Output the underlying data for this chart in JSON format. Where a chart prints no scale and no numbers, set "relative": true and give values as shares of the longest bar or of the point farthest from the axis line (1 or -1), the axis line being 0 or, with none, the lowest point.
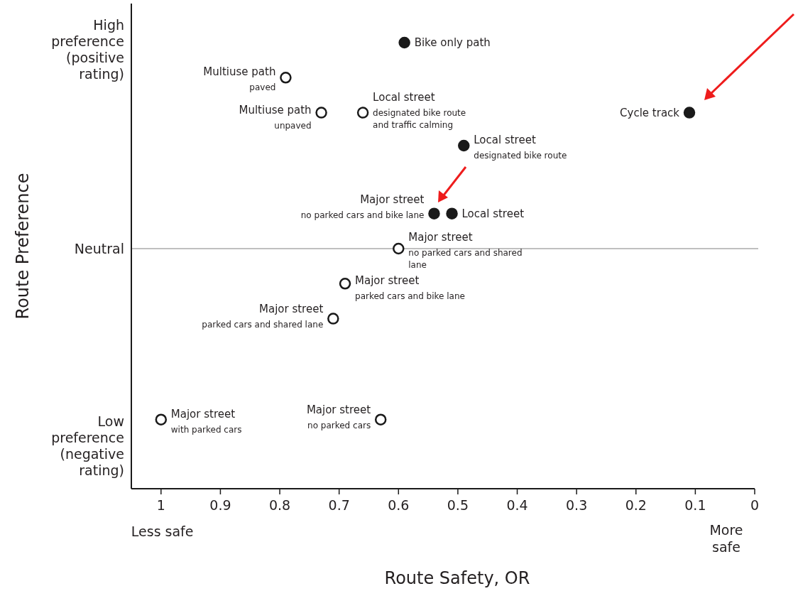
{
  "chart_data": {
    "type": "scatter",
    "xlabel": "Route Safety, OR",
    "relative": true,
    "xlim": [
      1.05,
      0
    ],
    "xticks": [
      1,
      0.9,
      0.8,
      0.7,
      0.6,
      0.5,
      0.4,
      0.3,
      0.2,
      0.1,
      0
    ],
    "grid": false,
    "marker": "circle",
    "ref_lines": [
      {
        "axis": "y",
        "value": 0,
        "label": "Neutral",
        "color": "#808080"
      }
    ],
    "series": [
      {
        "color": "#1a1a1a",
        "x": [
          0.59,
          0.11,
          0.49,
          0.54,
          0.51
        ],
        "values": [
          1,
          0.66,
          0.5,
          0.17,
          0.17
        ]
      },
      {
        "color": "#ffffff",
        "x": [
          0.79,
          0.73,
          0.66,
          0.6,
          0.69,
          0.71,
          1.0,
          0.63
        ],
        "values": [
          0.83,
          0.66,
          0.66,
          0.0,
          -0.17,
          -0.34,
          -0.83,
          -0.83
        ]
      }
    ],
    "annotations": [
      {
        "text": "Bike only path",
        "x": 0.59,
        "y": 1
      },
      {
        "text": "Multiuse path\npaved",
        "x": 0.79,
        "y": 0.83
      },
      {
        "text": "Multiuse path\nunpaved",
        "x": 0.73,
        "y": 0.66
      },
      {
        "text": "Local street\ndesignated bike route\nand traffic calming",
        "x": 0.66,
        "y": 0.66
      },
      {
        "text": "Cycle track",
        "x": 0.11,
        "y": 0.66
      },
      {
        "text": "Local street\ndesignated bike route",
        "x": 0.49,
        "y": 0.5
      },
      {
        "text": "Major street\nno parked cars and bike lane",
        "x": 0.54,
        "y": 0.17
      },
      {
        "text": "Local street",
        "x": 0.51,
        "y": 0.17
      },
      {
        "text": "Major street\nno parked cars and shared\nlane",
        "x": 0.6,
        "y": 0.0
      },
      {
        "text": "Major street\nparked cars and bike lane",
        "x": 0.69,
        "y": -0.17
      },
      {
        "text": "Major street\nparked cars and shared lane",
        "x": 0.71,
        "y": -0.34
      },
      {
        "text": "Major street\nwith parked cars",
        "x": 1.0,
        "y": -0.83
      },
      {
        "text": "Major street\nno parked cars",
        "x": 0.63,
        "y": -0.83
      },
      "High\npreference\n(positive\nrating)",
      "Low\npreference\n(negative\nrating)",
      "Less safe",
      "More\nsafe",
      "Route Preference"
    ]
  }
}
